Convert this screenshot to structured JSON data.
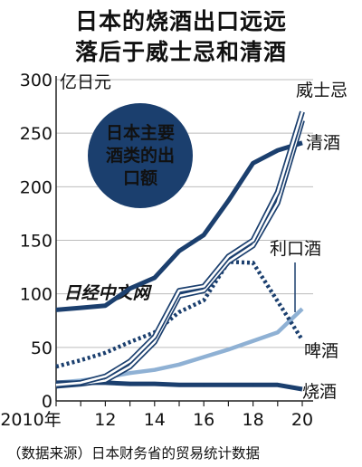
{
  "chart_data": {
    "type": "line",
    "title": "日本的烧酒出口远远落后于威士忌和清酒",
    "title_lines": [
      "日本的烧酒出口远远",
      "落后于威士忌和清酒"
    ],
    "ylabel": "亿日元",
    "ylim": [
      0,
      300
    ],
    "yticks": [
      0,
      50,
      100,
      150,
      200,
      250,
      300
    ],
    "xlim": [
      2010,
      2020
    ],
    "xtick_labels": [
      {
        "x": 2010,
        "label": "2010年"
      },
      {
        "x": 2012,
        "label": "12"
      },
      {
        "x": 2014,
        "label": "14"
      },
      {
        "x": 2016,
        "label": "16"
      },
      {
        "x": 2018,
        "label": "18"
      },
      {
        "x": 2020,
        "label": "20"
      }
    ],
    "x": [
      2010,
      2011,
      2012,
      2013,
      2014,
      2015,
      2016,
      2017,
      2018,
      2019,
      2020
    ],
    "annotation": "日本主要酒类的出口额",
    "annotation_lines": [
      "日本主要",
      "酒类的出",
      "口额"
    ],
    "watermark": "日经中文网",
    "source": "（数据来源）日本财务省的贸易统计数据",
    "series": [
      {
        "name": "威士忌",
        "style": "double",
        "color": "#1b3f6e",
        "values": [
          15,
          17,
          23,
          37,
          60,
          103,
          107,
          135,
          150,
          195,
          270
        ]
      },
      {
        "name": "清酒",
        "style": "solid-thick",
        "color": "#1b3f6e",
        "values": [
          85,
          87,
          89,
          105,
          115,
          140,
          155,
          187,
          222,
          234,
          241
        ]
      },
      {
        "name": "利口酒",
        "style": "double",
        "color": "#1b3f6e",
        "values": [
          14,
          16,
          19,
          32,
          55,
          98,
          103,
          130,
          145,
          185,
          262
        ]
      },
      {
        "name": "啤酒",
        "style": "dotted",
        "color": "#1b3f6e",
        "values": [
          32,
          38,
          45,
          55,
          64,
          83,
          94,
          130,
          129,
          93,
          57
        ]
      },
      {
        "name": "烧酒",
        "style": "solid-thick",
        "color": "#1b3f6e",
        "values": [
          17,
          17,
          17,
          16,
          16,
          15,
          15,
          15,
          15,
          15,
          11
        ]
      },
      {
        "name": "",
        "style": "light",
        "color": "#8fb1d4",
        "values": [
          17,
          19,
          22,
          26,
          29,
          34,
          41,
          48,
          56,
          64,
          86
        ]
      }
    ]
  }
}
